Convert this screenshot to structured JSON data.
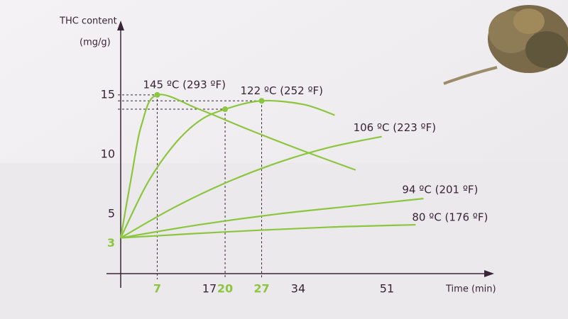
{
  "chart_data": {
    "type": "line",
    "ylabel": [
      "THC content",
      "(mg/g)"
    ],
    "xlabel": "Time (min)",
    "xlim": [
      0,
      71
    ],
    "ylim": [
      0,
      21
    ],
    "xticks": [
      7,
      17,
      20,
      27,
      34,
      51
    ],
    "yticks": [
      3,
      5,
      10,
      15
    ],
    "highlighted_ticks": {
      "x": [
        7,
        20,
        27
      ],
      "y": [
        3
      ]
    },
    "highlight_color": "#8cc63f",
    "series": [
      {
        "name": "145 ºC (293 ºF)",
        "color": "#8cc63f",
        "x": [
          0,
          2,
          4,
          7,
          15,
          25,
          35,
          45
        ],
        "values": [
          3,
          8,
          12.5,
          15,
          13.8,
          12,
          10.3,
          8.7
        ]
      },
      {
        "name": "122 ºC (252 ºF)",
        "color": "#8cc63f",
        "x": [
          0,
          5,
          10,
          15,
          20,
          27,
          35,
          41
        ],
        "values": [
          3,
          7.5,
          10.7,
          12.8,
          13.8,
          14.5,
          14.2,
          13.3
        ]
      },
      {
        "name": "106 ºC (223 ºF)",
        "color": "#8cc63f",
        "x": [
          0,
          10,
          20,
          30,
          40,
          50
        ],
        "values": [
          3,
          5.5,
          7.6,
          9.3,
          10.6,
          11.5
        ]
      },
      {
        "name": "94 ºC (201 ºF)",
        "color": "#8cc63f",
        "x": [
          0,
          15,
          30,
          45,
          58
        ],
        "values": [
          3,
          4.1,
          5,
          5.7,
          6.3
        ]
      },
      {
        "name": "80 ºC (176 ºF)",
        "color": "#8cc63f",
        "x": [
          0,
          20,
          40,
          56.5
        ],
        "values": [
          3,
          3.5,
          3.9,
          4.1
        ]
      }
    ],
    "markers": [
      {
        "x": 7,
        "y": 15
      },
      {
        "x": 20,
        "y": 13.8
      },
      {
        "x": 27,
        "y": 14.5
      }
    ]
  }
}
